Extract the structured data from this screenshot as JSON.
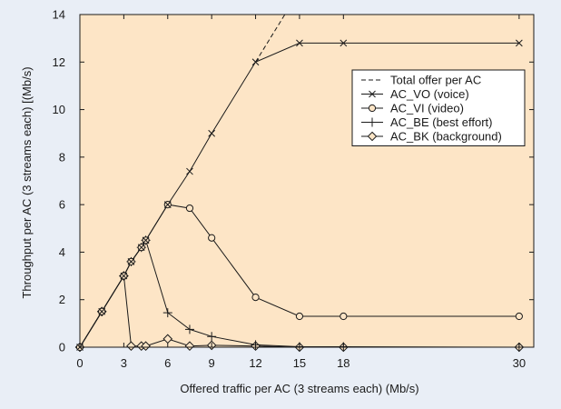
{
  "colors": {
    "page_background": "#e9eef6",
    "plot_background": "#fde5c6",
    "line": "#1a1a1a"
  },
  "chart_data": {
    "type": "line",
    "xlabel": "Offered traffic per AC (3 streams each) (Mb/s)",
    "ylabel": "Throughput per AC (3 streams each) [(Mb/s)",
    "xlim": [
      0,
      31
    ],
    "ylim": [
      0,
      14
    ],
    "x_ticks": [
      0,
      3,
      6,
      9,
      12,
      15,
      18,
      30
    ],
    "y_ticks": [
      0,
      2,
      4,
      6,
      8,
      10,
      12,
      14
    ],
    "grid": false,
    "legend_position": "top-right",
    "series": [
      {
        "name": "Total offer per AC",
        "marker": "none",
        "style": "dashed",
        "points": [
          [
            12,
            12
          ],
          [
            15.5,
            15.5
          ]
        ]
      },
      {
        "name": "AC_VO (voice)",
        "marker": "x",
        "style": "solid",
        "points": [
          [
            0,
            0
          ],
          [
            1.5,
            1.5
          ],
          [
            3,
            3
          ],
          [
            3.5,
            3.6
          ],
          [
            4.2,
            4.2
          ],
          [
            4.5,
            4.5
          ],
          [
            6,
            6
          ],
          [
            7.5,
            7.4
          ],
          [
            9,
            9
          ],
          [
            12,
            12
          ],
          [
            15,
            12.8
          ],
          [
            18,
            12.8
          ],
          [
            30,
            12.8
          ]
        ]
      },
      {
        "name": "AC_VI (video)",
        "marker": "circle",
        "style": "solid",
        "points": [
          [
            0,
            0
          ],
          [
            1.5,
            1.5
          ],
          [
            3,
            3
          ],
          [
            3.5,
            3.6
          ],
          [
            4.2,
            4.2
          ],
          [
            4.5,
            4.5
          ],
          [
            6,
            6
          ],
          [
            7.5,
            5.85
          ],
          [
            9,
            4.6
          ],
          [
            12,
            2.1
          ],
          [
            15,
            1.3
          ],
          [
            18,
            1.3
          ],
          [
            30,
            1.3
          ]
        ]
      },
      {
        "name": "AC_BE (best effort)",
        "marker": "plus",
        "style": "solid",
        "points": [
          [
            0,
            0
          ],
          [
            1.5,
            1.5
          ],
          [
            3,
            3
          ],
          [
            3.5,
            3.6
          ],
          [
            4.2,
            4.2
          ],
          [
            4.5,
            4.5
          ],
          [
            6,
            1.45
          ],
          [
            7.5,
            0.75
          ],
          [
            9,
            0.45
          ],
          [
            12,
            0.1
          ],
          [
            15,
            0.02
          ],
          [
            18,
            0.02
          ],
          [
            30,
            0
          ]
        ]
      },
      {
        "name": "AC_BK (background)",
        "marker": "diamond",
        "style": "solid",
        "points": [
          [
            0,
            0
          ],
          [
            1.5,
            1.5
          ],
          [
            3,
            3
          ],
          [
            3.5,
            0.05
          ],
          [
            4.2,
            0.05
          ],
          [
            4.5,
            0.05
          ],
          [
            6,
            0.35
          ],
          [
            7.5,
            0.05
          ],
          [
            9,
            0.08
          ],
          [
            12,
            0.05
          ],
          [
            15,
            0
          ],
          [
            18,
            0
          ],
          [
            30,
            0
          ]
        ]
      }
    ]
  }
}
